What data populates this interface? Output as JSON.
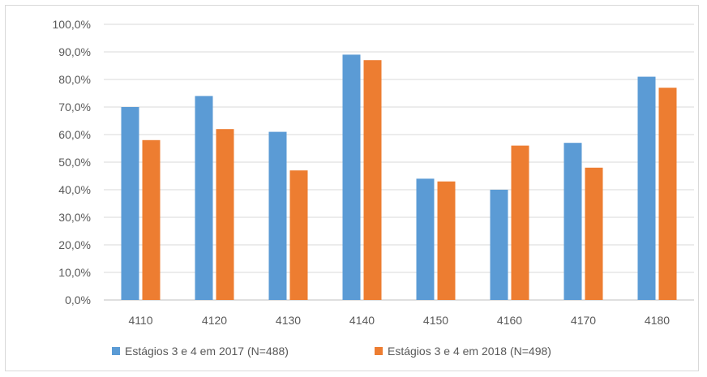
{
  "chart_data": {
    "type": "bar",
    "title": "",
    "xlabel": "",
    "ylabel": "",
    "categories": [
      "4110",
      "4120",
      "4130",
      "4140",
      "4150",
      "4160",
      "4170",
      "4180"
    ],
    "series": [
      {
        "name": "Estágios 3 e 4 em 2017 (N=488)",
        "color": "#5b9bd5",
        "values": [
          70,
          74,
          61,
          89,
          44,
          40,
          57,
          81
        ]
      },
      {
        "name": "Estágios 3 e 4 em 2018 (N=498)",
        "color": "#ed7d31",
        "values": [
          58,
          62,
          47,
          87,
          43,
          56,
          48,
          77
        ]
      }
    ],
    "ylim": [
      0,
      100
    ],
    "yticks": [
      "0,0%",
      "10,0%",
      "20,0%",
      "30,0%",
      "40,0%",
      "50,0%",
      "60,0%",
      "70,0%",
      "80,0%",
      "90,0%",
      "100,0%"
    ],
    "grid": true,
    "legend_position": "bottom",
    "gridline_color": "#d9d9d9",
    "axis_color": "#bfbfbf"
  }
}
